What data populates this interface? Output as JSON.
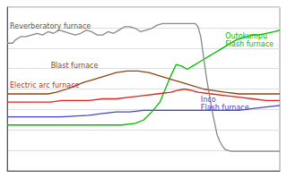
{
  "chart_data": {
    "type": "line",
    "xlim": [
      0,
      100
    ],
    "ylim": [
      0,
      100
    ],
    "yticks": [
      0,
      12.5,
      25,
      37.5,
      50,
      62.5,
      75,
      87.5,
      100
    ],
    "grid": true,
    "tick_labels": false,
    "series": [
      {
        "color": "#4444cc",
        "x": [
          0,
          20,
          30,
          35,
          40,
          45,
          50,
          55,
          60,
          65,
          70,
          75,
          80,
          85,
          90,
          95,
          100
        ],
        "values": [
          33,
          33,
          34,
          35,
          36,
          36,
          37,
          37,
          37,
          37,
          37,
          37,
          37,
          37,
          38,
          39,
          40
        ]
      },
      {
        "color": "#00bb00",
        "x": [
          0,
          15,
          25,
          35,
          42,
          47,
          50,
          53,
          56,
          58,
          60,
          62,
          64,
          66,
          68,
          70,
          72,
          74,
          76,
          78,
          80,
          82,
          84,
          86,
          88,
          90,
          92,
          95,
          98,
          100
        ],
        "values": [
          28,
          28,
          28,
          28,
          28,
          29,
          31,
          36,
          42,
          50,
          58,
          65,
          64,
          62,
          64,
          66,
          68,
          70,
          72,
          74,
          76,
          78,
          80,
          81,
          82,
          83,
          83,
          84,
          85,
          86
        ]
      },
      {
        "color": "#dd2222",
        "x": [
          0,
          5,
          8,
          12,
          16,
          20,
          25,
          30,
          35,
          40,
          45,
          50,
          55,
          60,
          62,
          65,
          68,
          70,
          75,
          80,
          85,
          90,
          95,
          100
        ],
        "values": [
          42,
          42,
          42,
          42,
          42,
          43,
          43,
          43,
          44,
          44,
          45,
          46,
          47,
          48,
          49,
          50,
          49,
          48,
          47,
          46,
          45,
          44,
          43,
          43
        ]
      },
      {
        "color": "#8B4513",
        "x": [
          0,
          5,
          10,
          15,
          18,
          22,
          25,
          28,
          32,
          36,
          40,
          44,
          48,
          52,
          56,
          60,
          64,
          68,
          72,
          76,
          80,
          85,
          90,
          95,
          100
        ],
        "values": [
          47,
          47,
          47,
          47,
          48,
          50,
          52,
          54,
          56,
          58,
          60,
          61,
          61,
          60,
          58,
          56,
          54,
          52,
          50,
          49,
          48,
          47,
          47,
          47,
          47
        ]
      },
      {
        "color": "#888888",
        "x": [
          0,
          2,
          3,
          5,
          7,
          9,
          11,
          13,
          15,
          17,
          19,
          21,
          23,
          25,
          27,
          29,
          31,
          33,
          35,
          37,
          39,
          41,
          43,
          45,
          47,
          49,
          51,
          53,
          55,
          57,
          59,
          61,
          63,
          65,
          67,
          68,
          69,
          70,
          71,
          72,
          73,
          74,
          75,
          76,
          77,
          78,
          79,
          80,
          82,
          84,
          86,
          88,
          90,
          92,
          94,
          96,
          98,
          100
        ],
        "values": [
          78,
          78,
          80,
          82,
          82,
          83,
          84,
          83,
          85,
          84,
          86,
          85,
          84,
          83,
          84,
          86,
          85,
          83,
          83,
          85,
          84,
          86,
          88,
          88,
          87,
          85,
          86,
          87,
          89,
          90,
          90,
          90,
          90,
          90,
          90,
          90,
          90,
          88,
          82,
          70,
          58,
          48,
          38,
          30,
          22,
          18,
          15,
          13,
          12,
          12,
          12,
          12,
          12,
          12,
          12,
          12,
          12,
          12
        ]
      }
    ],
    "annotations": [
      {
        "text": "Reverberatory furnace",
        "x": 1,
        "y": 86,
        "color": "#555555"
      },
      {
        "text": "Blast furnace",
        "x": 16,
        "y": 62,
        "color": "#8B4513"
      },
      {
        "text": "Electric arc furnace",
        "x": 1,
        "y": 50,
        "color": "#dd2222"
      },
      {
        "text": "Outokumpu\nFlash furnace",
        "x": 80,
        "y": 75,
        "color": "#00bb00"
      },
      {
        "text": "Inco\nFlash furnace",
        "x": 71,
        "y": 36,
        "color": "#4444cc"
      }
    ]
  }
}
